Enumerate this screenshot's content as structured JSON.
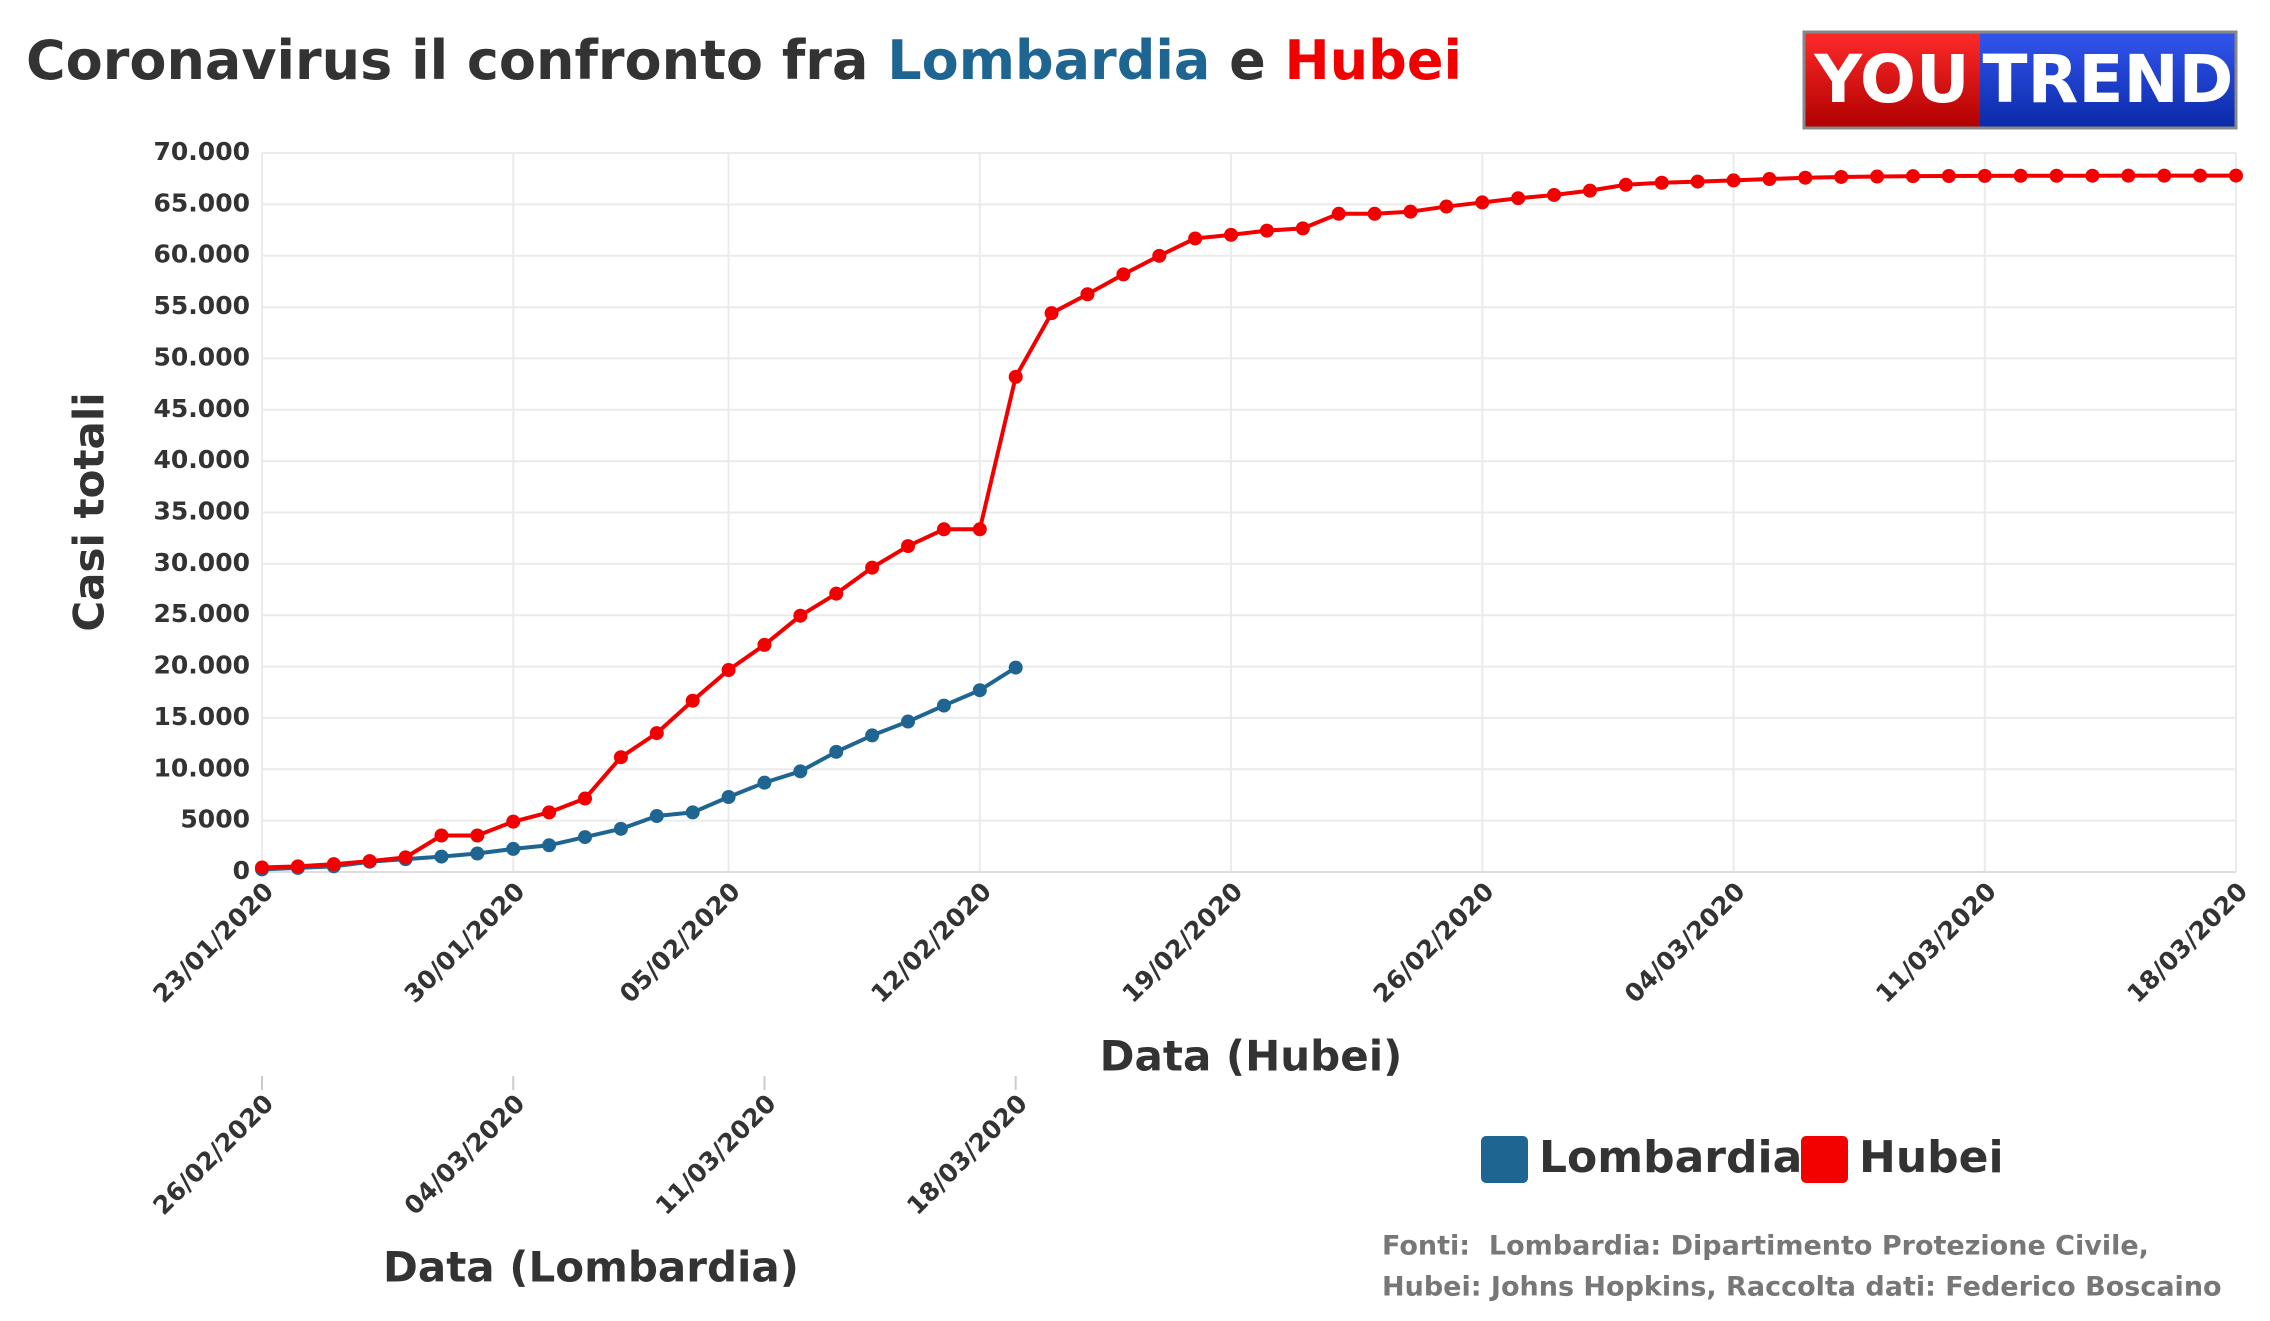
{
  "chart_data": {
    "type": "line",
    "title": [
      "Coronavirus il confronto fra ",
      "Lombardia",
      " e ",
      "Hubei"
    ],
    "logo": [
      "YOU",
      "TREND"
    ],
    "ylabel": "Casi totali",
    "xlabel": "Data (Hubei)",
    "x2label": "Data (Lombardia)",
    "source": [
      "Fonti:  Lombardia: Dipartimento Protezione Civile,",
      "Hubei: Johns Hopkins, Raccolta dati: Federico Boscaino"
    ],
    "xlim": [
      "23/01/2020",
      "18/03/2020"
    ],
    "xticks": [
      "23/01/2020",
      "30/01/2020",
      "05/02/2020",
      "12/02/2020",
      "19/02/2020",
      "26/02/2020",
      "04/03/2020",
      "11/03/2020",
      "18/03/2020"
    ],
    "x2lim": [
      "26/02/2020",
      "21/04/2020"
    ],
    "x2ticks": [
      "26/02/2020",
      "04/03/2020",
      "11/03/2020",
      "18/03/2020"
    ],
    "ylim": [
      0,
      70000
    ],
    "yticks": [
      0,
      5000,
      {
        "value": 10000,
        "label": "10.000"
      },
      {
        "value": 15000,
        "label": "15.000"
      },
      {
        "value": 20000,
        "label": "20.000"
      },
      {
        "value": 25000,
        "label": "25.000"
      },
      {
        "value": 30000,
        "label": "30.000"
      },
      {
        "value": 35000,
        "label": "35.000"
      },
      {
        "value": 40000,
        "label": "40.000"
      },
      {
        "value": 45000,
        "label": "45.000"
      },
      {
        "value": 50000,
        "label": "50.000"
      },
      {
        "value": 55000,
        "label": "55.000"
      },
      {
        "value": 60000,
        "label": "60.000"
      },
      {
        "value": 65000,
        "label": "65.000"
      },
      {
        "value": 70000,
        "label": "70.000"
      }
    ],
    "grid": true,
    "legend": "bottom-right",
    "series": [
      {
        "name": "Lombardia",
        "color": "#1f6592",
        "xaxis": "x2",
        "x": [
          "26/02/2020",
          "27/02/2020",
          "28/02/2020",
          "29/02/2020",
          "01/03/2020",
          "02/03/2020",
          "03/03/2020",
          "04/03/2020",
          "05/03/2020",
          "06/03/2020",
          "07/03/2020",
          "08/03/2020",
          "09/03/2020",
          "10/03/2020",
          "11/03/2020",
          "12/03/2020",
          "13/03/2020",
          "14/03/2020",
          "15/03/2020",
          "16/03/2020",
          "17/03/2020",
          "18/03/2020"
        ],
        "values": [
          250,
          400,
          550,
          1000,
          1250,
          1500,
          1800,
          2250,
          2600,
          3400,
          4200,
          5450,
          5800,
          7300,
          8700,
          9800,
          11700,
          13300,
          14650,
          16200,
          17700,
          19900
        ]
      },
      {
        "name": "Hubei",
        "color": "#f20000",
        "xaxis": "x",
        "x": [
          "23/01/2020",
          "24/01/2020",
          "25/01/2020",
          "26/01/2020",
          "27/01/2020",
          "28/01/2020",
          "29/01/2020",
          "30/01/2020",
          "31/01/2020",
          "01/02/2020",
          "02/02/2020",
          "03/02/2020",
          "04/02/2020",
          "05/02/2020",
          "06/02/2020",
          "07/02/2020",
          "08/02/2020",
          "09/02/2020",
          "10/02/2020",
          "11/02/2020",
          "12/02/2020",
          "13/02/2020",
          "14/02/2020",
          "15/02/2020",
          "16/02/2020",
          "17/02/2020",
          "18/02/2020",
          "19/02/2020",
          "20/02/2020",
          "21/02/2020",
          "22/02/2020",
          "23/02/2020",
          "24/02/2020",
          "25/02/2020",
          "26/02/2020",
          "27/02/2020",
          "28/02/2020",
          "29/02/2020",
          "01/03/2020",
          "02/03/2020",
          "03/03/2020",
          "04/03/2020",
          "05/03/2020",
          "06/03/2020",
          "07/03/2020",
          "08/03/2020",
          "09/03/2020",
          "10/03/2020",
          "11/03/2020",
          "12/03/2020",
          "13/03/2020",
          "14/03/2020",
          "15/03/2020",
          "16/03/2020",
          "17/03/2020",
          "18/03/2020"
        ],
        "values": [
          444,
          549,
          761,
          1058,
          1423,
          3554,
          3554,
          4903,
          5806,
          7153,
          11177,
          13522,
          16678,
          19665,
          22112,
          24953,
          27100,
          29631,
          31728,
          33366,
          33366,
          48206,
          54406,
          56249,
          58182,
          59989,
          61682,
          62031,
          62442,
          62662,
          64084,
          64084,
          64287,
          64786,
          65187,
          65596,
          65914,
          66337,
          66907,
          67103,
          67217,
          67332,
          67466,
          67592,
          67666,
          67707,
          67743,
          67760,
          67773,
          67781,
          67786,
          67790,
          67794,
          67798,
          67799,
          67800
        ]
      }
    ]
  }
}
